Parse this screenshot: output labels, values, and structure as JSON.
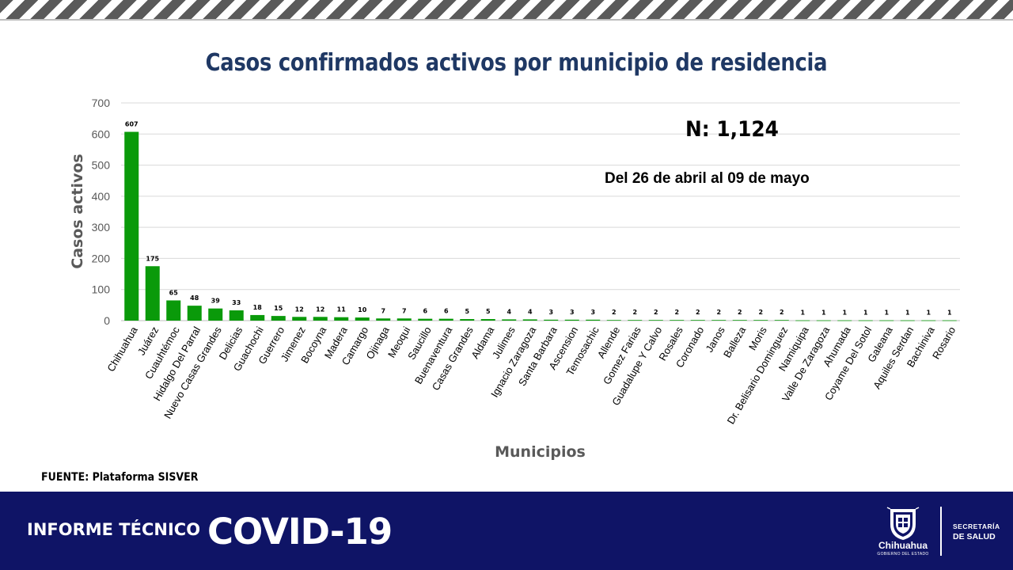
{
  "header": {
    "stripe": "hazard-stripes"
  },
  "chart_data": {
    "type": "bar",
    "title": "Casos confirmados activos por municipio de residencia",
    "xlabel": "Municipios",
    "ylabel": "Casos activos",
    "ylim": [
      0,
      700
    ],
    "yticks": [
      0,
      100,
      200,
      300,
      400,
      500,
      600,
      700
    ],
    "grid": true,
    "bar_color": "#0a9a0a",
    "categories": [
      "Chihuahua",
      "Juárez",
      "Cuauhtémoc",
      "Hidalgo Del Parral",
      "Nuevo Casas Grandes",
      "Delicias",
      "Guachochi",
      "Guerrero",
      "Jimenez",
      "Bocoyna",
      "Madera",
      "Camargo",
      "Ojinaga",
      "Meoqui",
      "Saucillo",
      "Buenaventura",
      "Casas Grandes",
      "Aldama",
      "Julimes",
      "Ignacio Zaragoza",
      "Santa Barbara",
      "Ascension",
      "Temosachic",
      "Allende",
      "Gomez Farias",
      "Guadalupe Y Calvo",
      "Rosales",
      "Coronado",
      "Janos",
      "Balleza",
      "Moris",
      "Dr. Belisario Dominguez",
      "Namiquipa",
      "Valle De Zaragoza",
      "Ahumada",
      "Coyame Del Sotol",
      "Galeana",
      "Aquiles Serdan",
      "Bachiniva",
      "Rosario"
    ],
    "values": [
      607,
      175,
      65,
      48,
      39,
      33,
      18,
      15,
      12,
      12,
      11,
      10,
      7,
      7,
      6,
      6,
      5,
      5,
      4,
      4,
      3,
      3,
      3,
      2,
      2,
      2,
      2,
      2,
      2,
      2,
      2,
      2,
      1,
      1,
      1,
      1,
      1,
      1,
      1,
      1
    ],
    "data_labels": true
  },
  "annotations": {
    "n_total": "N: 1,124",
    "period": "Del 26 de abril al 09 de mayo"
  },
  "source": "FUENTE: Plataforma SISVER",
  "footer": {
    "report_label": "INFORME TÉCNICO",
    "report_topic": "COVID-19",
    "logo_name": "Chihuahua",
    "logo_subtitle": "GOBIERNO DEL ESTADO",
    "dept_line1": "SECRETARÍA",
    "dept_line2": "DE SALUD",
    "background": "#0f1466"
  }
}
